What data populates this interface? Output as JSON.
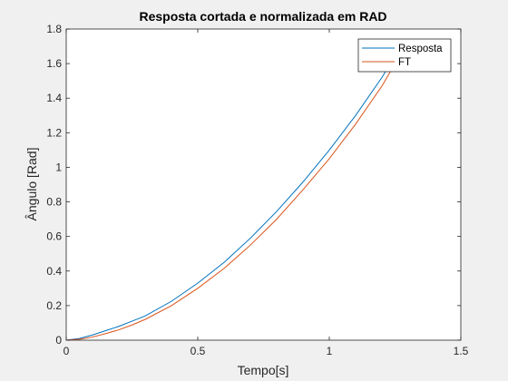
{
  "chart_data": {
    "type": "line",
    "title": "Resposta cortada e normalizada em RAD",
    "xlabel": "Tempo[s]",
    "ylabel": "Ângulo [Rad]",
    "xlim": [
      0,
      1.5
    ],
    "ylim": [
      0,
      1.8
    ],
    "xticks": [
      0,
      0.5,
      1,
      1.5
    ],
    "xtick_labels": [
      "0",
      "0.5",
      "1",
      "1.5"
    ],
    "yticks": [
      0,
      0.2,
      0.4,
      0.6,
      0.8,
      1,
      1.2,
      1.4,
      1.6,
      1.8
    ],
    "ytick_labels": [
      "0",
      "0.2",
      "0.4",
      "0.6",
      "0.8",
      "1",
      "1.2",
      "1.4",
      "1.6",
      "1.8"
    ],
    "grid": false,
    "legend_position": "top-right",
    "series": [
      {
        "name": "Resposta",
        "color": "#0072bd",
        "x": [
          0,
          0.05,
          0.1,
          0.15,
          0.2,
          0.25,
          0.3,
          0.4,
          0.5,
          0.6,
          0.7,
          0.8,
          0.9,
          1.0,
          1.1,
          1.2,
          1.24
        ],
        "y": [
          0,
          0.01,
          0.03,
          0.055,
          0.08,
          0.11,
          0.14,
          0.225,
          0.33,
          0.45,
          0.59,
          0.745,
          0.915,
          1.1,
          1.3,
          1.52,
          1.62
        ]
      },
      {
        "name": "FT",
        "color": "#d95319",
        "x": [
          0,
          0.05,
          0.1,
          0.15,
          0.2,
          0.25,
          0.3,
          0.4,
          0.5,
          0.6,
          0.7,
          0.8,
          0.9,
          1.0,
          1.1,
          1.2,
          1.25
        ],
        "y": [
          0,
          0.005,
          0.018,
          0.038,
          0.06,
          0.088,
          0.12,
          0.2,
          0.3,
          0.415,
          0.55,
          0.7,
          0.87,
          1.05,
          1.25,
          1.47,
          1.6
        ]
      }
    ]
  }
}
